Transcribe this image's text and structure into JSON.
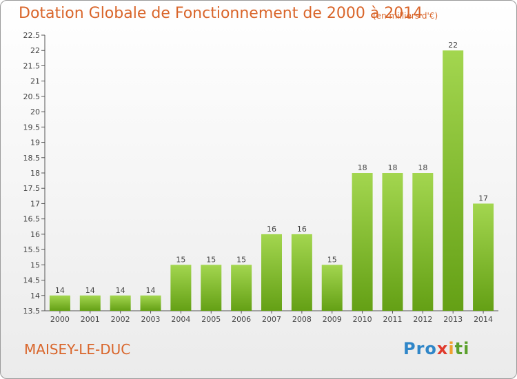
{
  "header": {
    "title": "Dotation Globale de Fonctionnement de 2000 à 2014",
    "subtitle": "(en milliers d'€)"
  },
  "footer": {
    "commune": "MAISEY-LE-DUC",
    "logo_text": "Proxiti"
  },
  "colors": {
    "title": "#d9652a",
    "bar_light": "#a3d64f",
    "bar_dark": "#64a015",
    "axis": "#555555"
  },
  "chart_data": {
    "type": "bar",
    "title": "Dotation Globale de Fonctionnement de 2000 à 2014",
    "subtitle": "(en milliers d'€)",
    "categories": [
      "2000",
      "2001",
      "2002",
      "2003",
      "2004",
      "2005",
      "2006",
      "2007",
      "2008",
      "2009",
      "2010",
      "2011",
      "2012",
      "2013",
      "2014"
    ],
    "values": [
      14,
      14,
      14,
      14,
      15,
      15,
      15,
      16,
      16,
      15,
      18,
      18,
      18,
      22,
      17
    ],
    "data_labels": [
      "14",
      "14",
      "14",
      "14",
      "15",
      "15",
      "15",
      "16",
      "16",
      "15",
      "18",
      "18",
      "18",
      "22",
      "17"
    ],
    "ylim": [
      13.5,
      22.5
    ],
    "yticks": [
      "13.5",
      "14",
      "14.5",
      "15",
      "15.5",
      "16",
      "16.5",
      "17",
      "17.5",
      "18",
      "18.5",
      "19",
      "19.5",
      "20",
      "20.5",
      "21",
      "21.5",
      "22",
      "22.5"
    ],
    "grid": false,
    "legend": "none"
  }
}
